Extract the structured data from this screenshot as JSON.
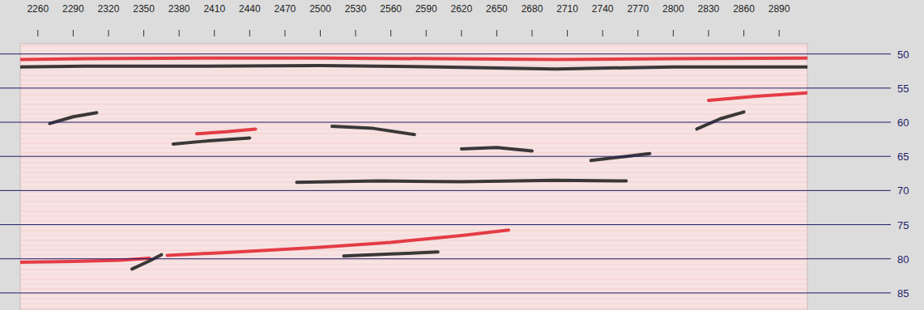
{
  "chart_data": {
    "type": "line",
    "xlim": [
      2245,
      2914
    ],
    "ylim": [
      48.5,
      87.5
    ],
    "xticks": [
      2260,
      2290,
      2320,
      2350,
      2380,
      2410,
      2440,
      2470,
      2500,
      2530,
      2560,
      2590,
      2620,
      2650,
      2680,
      2710,
      2740,
      2770,
      2800,
      2830,
      2860,
      2890
    ],
    "yticks": [
      50,
      55,
      60,
      65,
      70,
      75,
      80,
      85
    ],
    "grid": true,
    "series": [
      {
        "color": "#e0202a",
        "line_style": "solid",
        "x": [
          2245,
          2300,
          2400,
          2500,
          2600,
          2700,
          2800,
          2914
        ],
        "values": [
          50.8,
          50.7,
          50.6,
          50.6,
          50.7,
          50.8,
          50.7,
          50.6
        ]
      },
      {
        "color": "#1a1a1a",
        "line_style": "solid",
        "x": [
          2245,
          2300,
          2400,
          2500,
          2600,
          2700,
          2800,
          2914
        ],
        "values": [
          51.9,
          51.8,
          51.8,
          51.7,
          51.9,
          52.2,
          51.9,
          51.9
        ]
      },
      {
        "color": "#1a1a1a",
        "line_style": "solid",
        "x": [
          2375,
          2400,
          2440
        ],
        "values": [
          63.2,
          62.8,
          62.3
        ]
      },
      {
        "color": "#e0202a",
        "line_style": "solid",
        "x": [
          2395,
          2420,
          2445
        ],
        "values": [
          61.7,
          61.4,
          61.0
        ]
      },
      {
        "color": "#1a1a1a",
        "line_style": "solid",
        "x": [
          2510,
          2545,
          2580
        ],
        "values": [
          60.6,
          60.9,
          61.8
        ]
      },
      {
        "color": "#1a1a1a",
        "line_style": "solid",
        "x": [
          2620,
          2650,
          2680
        ],
        "values": [
          63.9,
          63.7,
          64.2
        ]
      },
      {
        "color": "#1a1a1a",
        "line_style": "solid",
        "x": [
          2730,
          2760,
          2780
        ],
        "values": [
          65.6,
          65.0,
          64.6
        ]
      },
      {
        "color": "#e0202a",
        "line_style": "solid",
        "x": [
          2370,
          2430,
          2500,
          2560,
          2620,
          2660
        ],
        "values": [
          79.5,
          79.0,
          78.3,
          77.6,
          76.6,
          75.8
        ]
      },
      {
        "color": "#1a1a1a",
        "line_style": "solid",
        "x": [
          2520,
          2560,
          2600
        ],
        "values": [
          79.6,
          79.3,
          79.0
        ]
      },
      {
        "color": "#e0202a",
        "line_style": "solid",
        "x": [
          2245,
          2290,
          2330,
          2355
        ],
        "values": [
          80.5,
          80.4,
          80.2,
          79.9
        ]
      },
      {
        "color": "#1a1a1a",
        "line_style": "solid",
        "x": [
          2340,
          2355,
          2365
        ],
        "values": [
          81.5,
          80.3,
          79.4
        ]
      },
      {
        "color": "#e0202a",
        "line_style": "solid",
        "x": [
          2830,
          2870,
          2914
        ],
        "values": [
          56.8,
          56.2,
          55.7
        ]
      },
      {
        "color": "#1a1a1a",
        "line_style": "solid",
        "x": [
          2820,
          2840,
          2860
        ],
        "values": [
          61.0,
          59.5,
          58.5
        ]
      },
      {
        "color": "#1a1a1a",
        "line_style": "solid",
        "x": [
          2270,
          2290,
          2310
        ],
        "values": [
          60.2,
          59.2,
          58.6
        ]
      },
      {
        "color": "#1a1a1a",
        "line_style": "solid",
        "x": [
          2480,
          2550,
          2620,
          2700,
          2760
        ],
        "values": [
          68.8,
          68.6,
          68.7,
          68.5,
          68.6
        ]
      }
    ]
  }
}
